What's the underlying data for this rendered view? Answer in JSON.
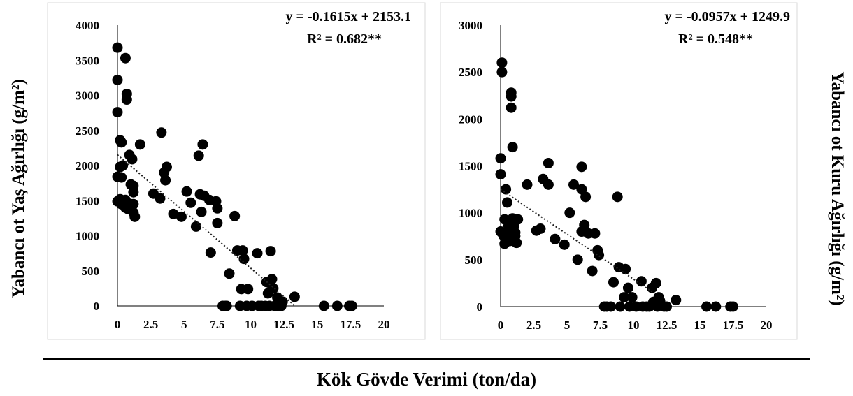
{
  "figure": {
    "left_ylabel": "Yabancı ot Yaş Ağırlığı (g/m²)",
    "right_ylabel": "Yabancı ot Kuru Ağırlığı (g/m²)",
    "shared_xlabel": "Kök Gövde Verimi (ton/da)"
  },
  "chart_data": [
    {
      "type": "scatter",
      "title": "",
      "xlabel": "Kök Gövde Verimi (ton/da)",
      "ylabel": "Yabancı ot Yaş Ağırlığı (g/m²)",
      "xlim": [
        0,
        20
      ],
      "ylim": [
        0,
        4000
      ],
      "x_ticks": [
        "0",
        "2.5",
        "5",
        "7.5",
        "10",
        "12.5",
        "15",
        "17.5",
        "20"
      ],
      "y_ticks": [
        "0",
        "500",
        "1000",
        "1500",
        "2000",
        "2500",
        "3000",
        "3500",
        "4000"
      ],
      "equation": "y = -0.1615x + 2153.1",
      "r2": "R² = 0.682**",
      "trendline": {
        "slope": -0.1615,
        "intercept": 2153.1,
        "x_range": [
          0,
          13.3
        ],
        "style": "dotted"
      },
      "marker_color": "#000000",
      "points": [
        [
          0.0,
          3680
        ],
        [
          0.0,
          3220
        ],
        [
          0.0,
          2760
        ],
        [
          0.0,
          1840
        ],
        [
          0.0,
          1490
        ],
        [
          0.2,
          2360
        ],
        [
          0.3,
          2330
        ],
        [
          0.2,
          1980
        ],
        [
          0.3,
          1830
        ],
        [
          0.2,
          1520
        ],
        [
          0.3,
          1450
        ],
        [
          0.6,
          3530
        ],
        [
          0.7,
          3020
        ],
        [
          0.7,
          2940
        ],
        [
          0.4,
          2000
        ],
        [
          0.6,
          1510
        ],
        [
          0.6,
          1400
        ],
        [
          0.9,
          2150
        ],
        [
          1.0,
          1730
        ],
        [
          1.2,
          1710
        ],
        [
          1.1,
          2090
        ],
        [
          0.8,
          1380
        ],
        [
          1.2,
          1620
        ],
        [
          1.0,
          1450
        ],
        [
          1.2,
          1450
        ],
        [
          1.2,
          1330
        ],
        [
          1.3,
          1270
        ],
        [
          1.7,
          2300
        ],
        [
          2.7,
          1600
        ],
        [
          3.3,
          2470
        ],
        [
          3.2,
          1530
        ],
        [
          3.5,
          1900
        ],
        [
          3.6,
          1790
        ],
        [
          3.7,
          1980
        ],
        [
          4.2,
          1310
        ],
        [
          4.8,
          1270
        ],
        [
          5.2,
          1630
        ],
        [
          5.5,
          1470
        ],
        [
          5.9,
          1130
        ],
        [
          6.2,
          1590
        ],
        [
          6.1,
          2140
        ],
        [
          6.3,
          1340
        ],
        [
          6.4,
          2300
        ],
        [
          6.5,
          1570
        ],
        [
          6.9,
          1510
        ],
        [
          7.0,
          760
        ],
        [
          7.4,
          1490
        ],
        [
          7.5,
          1390
        ],
        [
          7.5,
          1180
        ],
        [
          7.9,
          0
        ],
        [
          8.1,
          0
        ],
        [
          8.2,
          0
        ],
        [
          8.4,
          460
        ],
        [
          8.8,
          1280
        ],
        [
          9.0,
          790
        ],
        [
          9.2,
          0
        ],
        [
          9.3,
          240
        ],
        [
          9.4,
          790
        ],
        [
          9.5,
          670
        ],
        [
          9.7,
          0
        ],
        [
          9.8,
          240
        ],
        [
          10.1,
          0
        ],
        [
          10.5,
          750
        ],
        [
          10.6,
          0
        ],
        [
          10.8,
          0
        ],
        [
          11.1,
          0
        ],
        [
          11.2,
          340
        ],
        [
          11.3,
          180
        ],
        [
          11.4,
          330
        ],
        [
          11.4,
          0
        ],
        [
          11.5,
          780
        ],
        [
          11.6,
          380
        ],
        [
          11.7,
          250
        ],
        [
          11.8,
          0
        ],
        [
          11.9,
          0
        ],
        [
          12.0,
          120
        ],
        [
          12.2,
          0
        ],
        [
          12.3,
          0
        ],
        [
          12.4,
          60
        ],
        [
          13.3,
          130
        ],
        [
          15.5,
          0
        ],
        [
          16.5,
          0
        ],
        [
          17.4,
          0
        ],
        [
          17.6,
          0
        ]
      ]
    },
    {
      "type": "scatter",
      "title": "",
      "xlabel": "Kök Gövde Verimi (ton/da)",
      "ylabel": "Yabancı ot Kuru Ağırlığı (g/m²)",
      "xlim": [
        0,
        20
      ],
      "ylim": [
        0,
        3000
      ],
      "x_ticks": [
        "0",
        "2.5",
        "5",
        "7.5",
        "10",
        "12.5",
        "15",
        "17.5",
        "20"
      ],
      "y_ticks": [
        "0",
        "500",
        "1000",
        "1500",
        "2000",
        "2500",
        "3000"
      ],
      "equation": "y = -0.0957x + 1249.9",
      "r2": "R² = 0.548**",
      "trendline": {
        "slope": -0.0957,
        "intercept": 1249.9,
        "x_range": [
          0,
          11.4
        ],
        "style": "dotted"
      },
      "marker_color": "#000000",
      "points": [
        [
          0.1,
          2600
        ],
        [
          0.1,
          2500
        ],
        [
          0.0,
          1580
        ],
        [
          0.0,
          1410
        ],
        [
          0.0,
          800
        ],
        [
          0.2,
          760
        ],
        [
          0.3,
          670
        ],
        [
          0.4,
          1250
        ],
        [
          0.5,
          1110
        ],
        [
          0.3,
          930
        ],
        [
          0.5,
          800
        ],
        [
          0.6,
          860
        ],
        [
          0.6,
          730
        ],
        [
          0.7,
          700
        ],
        [
          0.8,
          2280
        ],
        [
          0.8,
          2240
        ],
        [
          0.8,
          2120
        ],
        [
          0.9,
          1700
        ],
        [
          0.9,
          940
        ],
        [
          1.0,
          860
        ],
        [
          1.1,
          790
        ],
        [
          1.1,
          750
        ],
        [
          1.2,
          680
        ],
        [
          1.3,
          930
        ],
        [
          2.0,
          1300
        ],
        [
          2.7,
          810
        ],
        [
          3.0,
          830
        ],
        [
          3.2,
          1360
        ],
        [
          3.6,
          1530
        ],
        [
          3.6,
          1300
        ],
        [
          4.1,
          720
        ],
        [
          4.8,
          660
        ],
        [
          5.2,
          1000
        ],
        [
          5.5,
          1300
        ],
        [
          5.8,
          500
        ],
        [
          6.1,
          1490
        ],
        [
          6.1,
          1250
        ],
        [
          6.1,
          800
        ],
        [
          6.3,
          870
        ],
        [
          6.4,
          1170
        ],
        [
          6.6,
          780
        ],
        [
          6.9,
          380
        ],
        [
          7.1,
          780
        ],
        [
          7.3,
          600
        ],
        [
          7.4,
          550
        ],
        [
          7.8,
          0
        ],
        [
          8.0,
          0
        ],
        [
          8.3,
          0
        ],
        [
          8.5,
          260
        ],
        [
          8.8,
          1170
        ],
        [
          8.9,
          420
        ],
        [
          9.0,
          0
        ],
        [
          9.3,
          100
        ],
        [
          9.4,
          400
        ],
        [
          9.6,
          200
        ],
        [
          9.7,
          0
        ],
        [
          9.9,
          100
        ],
        [
          10.2,
          0
        ],
        [
          10.6,
          270
        ],
        [
          10.7,
          0
        ],
        [
          11.0,
          0
        ],
        [
          11.2,
          0
        ],
        [
          11.4,
          200
        ],
        [
          11.5,
          50
        ],
        [
          11.7,
          250
        ],
        [
          11.8,
          0
        ],
        [
          11.9,
          100
        ],
        [
          12.0,
          60
        ],
        [
          12.3,
          0
        ],
        [
          12.5,
          0
        ],
        [
          13.2,
          70
        ],
        [
          15.5,
          0
        ],
        [
          16.2,
          0
        ],
        [
          17.3,
          0
        ],
        [
          17.5,
          0
        ]
      ]
    }
  ]
}
